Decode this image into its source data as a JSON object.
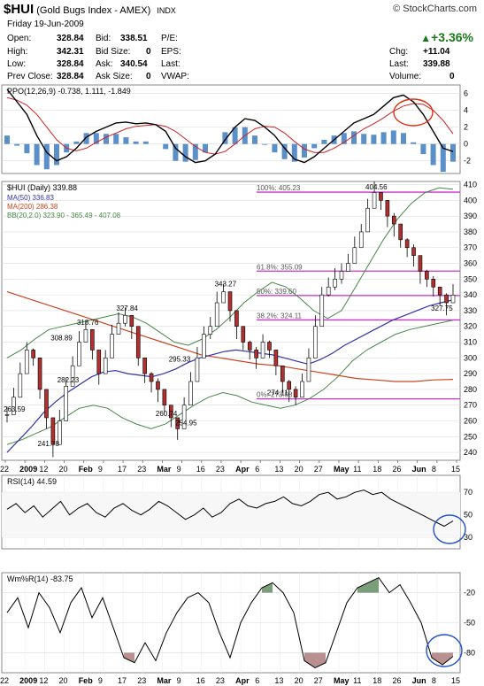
{
  "header": {
    "symbol": "$HUI",
    "name": "(Gold Bugs Index - AMEX)",
    "exchange": "INDX",
    "source": "© StockCharts.com",
    "date": "Friday  19-Jun-2009",
    "open_label": "Open:",
    "open": "328.84",
    "high_label": "High:",
    "high": "342.31",
    "low_label": "Low:",
    "low": "328.84",
    "prev_label": "Prev Close:",
    "prev": "328.84",
    "bid_label": "Bid:",
    "bid": "338.51",
    "bidsize_label": "Bid Size:",
    "bidsize": "0",
    "ask_label": "Ask:",
    "ask": "340.54",
    "asksize_label": "Ask Size:",
    "asksize": "0",
    "pe_label": "P/E:",
    "eps_label": "EPS:",
    "last_label": "Last:",
    "vwap_label": "VWAP:",
    "pct": "+3.36%",
    "chg_label": "Chg:",
    "chg": "+11.04",
    "last2_label": "Last:",
    "last2": "339.88",
    "vol_label": "Volume:",
    "vol": "0"
  },
  "chart_data": [
    {
      "type": "line",
      "title": "PPO(12,26,9) -0.738, 1.111, -1.849",
      "legend": [
        "PPO(12,26,9)",
        "-0.738",
        "1.111",
        "-1.849"
      ],
      "y_ticks": [
        "6",
        "4",
        "2",
        "0",
        "-2"
      ],
      "ylim": [
        -3.5,
        7
      ],
      "series": [
        {
          "name": "PPO",
          "color": "#000000",
          "values": [
            6.5,
            5.0,
            3.5,
            1.0,
            -1.0,
            -2.0,
            -1.5,
            -0.5,
            0.8,
            1.5,
            2.0,
            2.5,
            2.6,
            2.4,
            2.5,
            2.3,
            1.5,
            -0.5,
            -1.5,
            -2.2,
            -2.0,
            -1.2,
            0.5,
            2.0,
            3.0,
            2.8,
            2.0,
            1.0,
            -0.5,
            -1.8,
            -2.2,
            -1.5,
            -0.5,
            0.5,
            1.5,
            2.5,
            3.0,
            3.5,
            4.5,
            5.5,
            5.8,
            5.0,
            3.5,
            1.5,
            -0.5,
            -0.9
          ]
        },
        {
          "name": "Signal",
          "color": "#cc2222",
          "values": [
            5.5,
            5.2,
            4.6,
            3.5,
            2.0,
            0.5,
            -0.5,
            -0.8,
            -0.5,
            0.2,
            0.8,
            1.3,
            1.8,
            2.1,
            2.2,
            2.3,
            2.1,
            1.5,
            0.6,
            -0.3,
            -1.0,
            -1.2,
            -0.9,
            0.0,
            1.0,
            1.8,
            2.1,
            2.0,
            1.3,
            0.3,
            -0.6,
            -1.0,
            -1.0,
            -0.5,
            0.2,
            1.0,
            1.8,
            2.4,
            3.1,
            3.9,
            4.5,
            4.8,
            4.7,
            4.0,
            2.8,
            1.2
          ]
        },
        {
          "name": "Histogram",
          "color": "#4a86c8",
          "values": [
            1.0,
            -0.2,
            -1.1,
            -2.5,
            -3.0,
            -2.5,
            -1.0,
            0.3,
            1.3,
            1.3,
            1.2,
            1.2,
            0.8,
            0.3,
            0.3,
            0.0,
            -0.6,
            -2.0,
            -2.1,
            -1.9,
            -1.0,
            0.0,
            1.4,
            2.0,
            2.0,
            1.0,
            -0.1,
            -1.0,
            -1.8,
            -2.1,
            -1.6,
            -0.5,
            0.5,
            1.0,
            1.3,
            1.5,
            1.2,
            1.1,
            1.4,
            1.6,
            1.3,
            0.2,
            -1.2,
            -2.5,
            -3.3,
            -2.1
          ]
        }
      ]
    },
    {
      "type": "line",
      "title": "$HUI (Daily) 339.88",
      "legend": [
        "$HUI (Daily) 339.88",
        "MA(50) 336.83",
        "MA(200) 286.38",
        "BB(20,2.0) 323.90 - 365.49 - 407.08"
      ],
      "y_ticks": [
        "410",
        "400",
        "390",
        "380",
        "370",
        "360",
        "350",
        "340",
        "330",
        "320",
        "310",
        "300",
        "290",
        "280",
        "270",
        "260",
        "250",
        "240"
      ],
      "ylim": [
        235,
        412
      ],
      "x_ticks": [
        "22",
        "2009",
        "12",
        "20",
        "Feb",
        "9",
        "17",
        "23",
        "Mar",
        "9",
        "16",
        "23",
        "Apr",
        "6",
        "13",
        "20",
        "27",
        "May",
        "11",
        "18",
        "26",
        "Jun",
        "8",
        "15"
      ],
      "fib_levels": [
        {
          "label": "100%: 405.23",
          "value": 405.23
        },
        {
          "label": "61.8%: 355.09",
          "value": 355.09
        },
        {
          "label": "50%: 339.60",
          "value": 339.6
        },
        {
          "label": "38.2%: 324.11",
          "value": 324.11
        },
        {
          "label": "0%: 273.98",
          "value": 273.98
        }
      ],
      "annotations": [
        {
          "text": "308.89",
          "value": 308.89
        },
        {
          "text": "318.76",
          "value": 318.76
        },
        {
          "text": "327.84",
          "value": 327.84
        },
        {
          "text": "282.23",
          "value": 282.23
        },
        {
          "text": "241.78",
          "value": 241.78
        },
        {
          "text": "295.33",
          "value": 295.33
        },
        {
          "text": "260.74",
          "value": 260.74
        },
        {
          "text": "254.95",
          "value": 254.95
        },
        {
          "text": "343.27",
          "value": 343.27
        },
        {
          "text": "274.11",
          "value": 274.11
        },
        {
          "text": "404.56",
          "value": 404.56
        },
        {
          "text": "327.75",
          "value": 327.75
        },
        {
          "text": "263.59",
          "value": 263.59
        }
      ],
      "series": [
        {
          "name": "$HUI",
          "color": "#000000",
          "values": [
            264,
            275,
            290,
            305,
            300,
            280,
            262,
            245,
            260,
            282,
            295,
            310,
            318,
            305,
            290,
            300,
            315,
            322,
            327,
            320,
            300,
            290,
            285,
            280,
            270,
            262,
            255,
            270,
            285,
            300,
            315,
            320,
            335,
            342,
            330,
            320,
            310,
            305,
            300,
            310,
            305,
            295,
            285,
            280,
            275,
            285,
            300,
            320,
            340,
            345,
            350,
            355,
            360,
            370,
            380,
            395,
            405,
            400,
            390,
            385,
            375,
            370,
            365,
            355,
            350,
            345,
            340,
            335,
            339.88
          ]
        },
        {
          "name": "MA(50)",
          "color": "#3333aa",
          "values": [
            240,
            248,
            256,
            265,
            272,
            278,
            283,
            288,
            291,
            292,
            290,
            289,
            288,
            290,
            293,
            297,
            300,
            302,
            304,
            305,
            304,
            303,
            302,
            300,
            298,
            296,
            299,
            303,
            308,
            312,
            316,
            320,
            324,
            327,
            330,
            333,
            335,
            336.83
          ]
        },
        {
          "name": "MA(200)",
          "color": "#cc4422",
          "values": [
            342,
            338,
            334,
            330,
            326,
            322,
            318,
            314,
            310,
            306,
            302,
            300,
            298,
            296,
            295,
            293,
            291,
            289,
            287,
            286,
            285,
            285,
            286,
            286.38
          ]
        },
        {
          "name": "BB upper",
          "color": "#448844",
          "values": [
            300,
            305,
            312,
            318,
            320,
            322,
            324,
            326,
            328,
            326,
            322,
            316,
            310,
            308,
            312,
            318,
            326,
            335,
            342,
            348,
            345,
            338,
            330,
            325,
            330,
            345,
            360,
            375,
            388,
            398,
            405,
            408,
            407.08
          ]
        },
        {
          "name": "BB lower",
          "color": "#448844",
          "values": [
            245,
            248,
            252,
            256,
            262,
            268,
            270,
            268,
            262,
            258,
            255,
            258,
            264,
            270,
            275,
            278,
            276,
            272,
            270,
            268,
            270,
            274,
            280,
            288,
            298,
            305,
            310,
            315,
            318,
            320,
            322,
            323.9
          ]
        }
      ]
    },
    {
      "type": "line",
      "title": "RSI(14) 44.59",
      "y_ticks": [
        "70",
        "50",
        "30"
      ],
      "ylim": [
        20,
        85
      ],
      "series": [
        {
          "name": "RSI",
          "color": "#000000",
          "values": [
            55,
            60,
            52,
            58,
            48,
            55,
            62,
            50,
            56,
            60,
            52,
            48,
            56,
            60,
            54,
            50,
            55,
            62,
            58,
            52,
            46,
            50,
            56,
            48,
            52,
            60,
            64,
            58,
            56,
            60,
            62,
            66,
            60,
            58,
            62,
            68,
            70,
            64,
            66,
            70,
            72,
            68,
            70,
            64,
            60,
            56,
            52,
            48,
            44,
            40,
            44.59
          ]
        }
      ]
    },
    {
      "type": "line",
      "title": "Wm%R(14) -83.75",
      "y_ticks": [
        "-20",
        "-50",
        "-80"
      ],
      "ylim": [
        -100,
        0
      ],
      "series": [
        {
          "name": "Wm%R",
          "color": "#000000",
          "values": [
            -40,
            -25,
            -55,
            -20,
            -35,
            -60,
            -30,
            -15,
            -45,
            -25,
            -55,
            -85,
            -90,
            -70,
            -88,
            -60,
            -40,
            -25,
            -20,
            -30,
            -60,
            -85,
            -50,
            -30,
            -15,
            -10,
            -20,
            -40,
            -88,
            -95,
            -90,
            -60,
            -30,
            -15,
            -10,
            -5,
            -20,
            -12,
            -30,
            -50,
            -85,
            -92,
            -83.75
          ]
        }
      ]
    }
  ]
}
